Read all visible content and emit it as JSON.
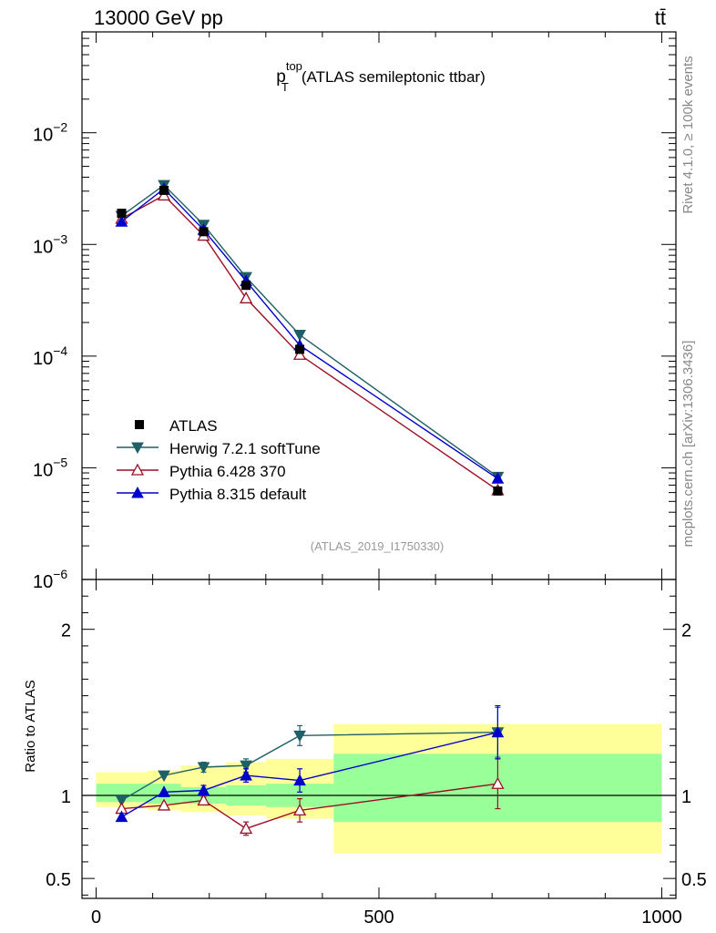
{
  "header": {
    "energy_label": "13000 GeV pp",
    "process_label": "tt̄"
  },
  "side_labels": {
    "rivet": "Rivet 4.1.0, ≥ 100k events",
    "mcplots": "mcplots.cern.ch [arXiv:1306.3436]"
  },
  "chart_data": {
    "type": "line",
    "title": "p_T^top (ATLAS semileptonic ttbar)",
    "title_parts": {
      "p": "p",
      "sup": "top",
      "sub": "T",
      "rest": "(ATLAS semileptonic ttbar)"
    },
    "watermark": "(ATLAS_2019_I1750330)",
    "x": [
      45,
      120,
      190,
      265,
      360,
      710
    ],
    "bin_edges": [
      0,
      90,
      150,
      230,
      300,
      420,
      1000
    ],
    "xlim": [
      -25,
      1025
    ],
    "xticks": [
      0,
      500,
      1000
    ],
    "xtick_labels": [
      "0",
      "500",
      "1000"
    ],
    "main": {
      "yscale": "log",
      "ylim": [
        1e-06,
        0.08
      ],
      "yticks": [
        {
          "value": 1e-06,
          "base": "10",
          "exp": "−6"
        },
        {
          "value": 1e-05,
          "base": "10",
          "exp": "−5"
        },
        {
          "value": 0.0001,
          "base": "10",
          "exp": "−4"
        },
        {
          "value": 0.001,
          "base": "10",
          "exp": "−3"
        },
        {
          "value": 0.01,
          "base": "10",
          "exp": "−2"
        }
      ]
    },
    "ratio": {
      "ylabel": "Ratio to ATLAS",
      "ylim": [
        0.38,
        2.3
      ],
      "yticks": [
        0.5,
        1,
        2
      ],
      "ytick_labels": [
        "0.5",
        "1",
        "2"
      ],
      "band_inner": [
        [
          0.96,
          1.07
        ],
        [
          0.95,
          1.07
        ],
        [
          0.95,
          1.05
        ],
        [
          0.94,
          1.06
        ],
        [
          0.93,
          1.07
        ],
        [
          0.84,
          1.25
        ]
      ],
      "band_outer": [
        [
          0.93,
          1.14
        ],
        [
          0.91,
          1.15
        ],
        [
          0.9,
          1.18
        ],
        [
          0.88,
          1.2
        ],
        [
          0.86,
          1.22
        ],
        [
          0.65,
          1.43
        ]
      ]
    },
    "data": {
      "name": "ATLAS",
      "y": [
        0.0019,
        0.00305,
        0.0013,
        0.00043,
        0.000115,
        6.2e-06
      ]
    },
    "series": [
      {
        "name": "Herwig 7.2.1 softTune",
        "color": "#1f5f66",
        "marker": "triangle-down-filled",
        "y": [
          0.0018,
          0.0034,
          0.0015,
          0.00051,
          0.000155,
          8.3e-06
        ],
        "ratio": [
          0.97,
          1.12,
          1.17,
          1.18,
          1.36,
          1.38
        ],
        "ratio_err": [
          0.01,
          0.01,
          0.03,
          0.04,
          0.06,
          0.15
        ]
      },
      {
        "name": "Pythia 6.428 370",
        "color": "#9b0f24",
        "marker": "triangle-up-open",
        "y": [
          0.0017,
          0.00275,
          0.0012,
          0.00033,
          0.000103,
          6.3e-06
        ],
        "ratio": [
          0.92,
          0.94,
          0.97,
          0.8,
          0.91,
          1.07
        ],
        "ratio_err": [
          0.01,
          0.01,
          0.02,
          0.04,
          0.07,
          0.15
        ]
      },
      {
        "name": "Pythia 8.315 default",
        "color": "#0000cc",
        "marker": "triangle-up-filled",
        "y": [
          0.0016,
          0.00315,
          0.00135,
          0.00047,
          0.000125,
          8e-06
        ],
        "ratio": [
          0.87,
          1.02,
          1.03,
          1.12,
          1.09,
          1.38
        ],
        "ratio_err": [
          0.01,
          0.01,
          0.03,
          0.04,
          0.07,
          0.16
        ]
      }
    ]
  }
}
